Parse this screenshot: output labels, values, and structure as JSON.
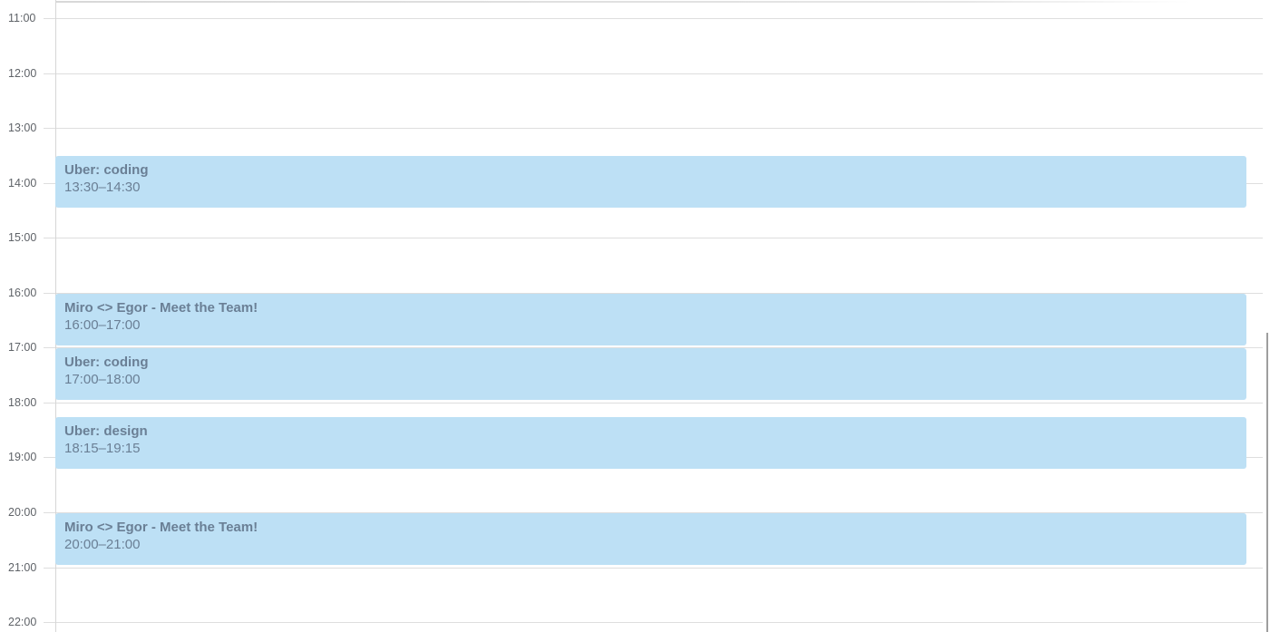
{
  "calendar": {
    "hours": [
      "11:00",
      "12:00",
      "13:00",
      "14:00",
      "15:00",
      "16:00",
      "17:00",
      "18:00",
      "19:00",
      "20:00",
      "21:00",
      "22:00"
    ],
    "event_color": "#bde0f5",
    "events": [
      {
        "title": "Uber: coding",
        "time": "13:30–14:30",
        "start": 13.5
      },
      {
        "title": "Miro <> Egor - Meet the Team!",
        "time": "16:00–17:00",
        "start": 16
      },
      {
        "title": "Uber: coding",
        "time": "17:00–18:00",
        "start": 17
      },
      {
        "title": "Uber: design",
        "time": "18:15–19:15",
        "start": 18.25
      },
      {
        "title": "Miro <> Egor - Meet the Team!",
        "time": "20:00–21:00",
        "start": 20
      }
    ]
  }
}
